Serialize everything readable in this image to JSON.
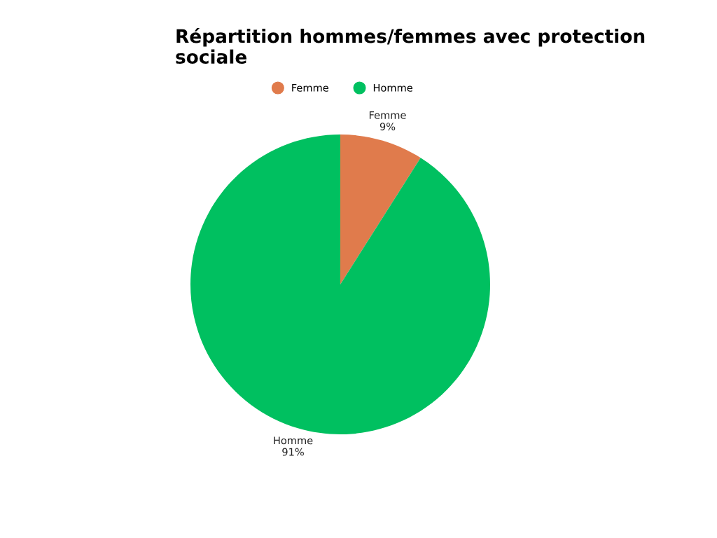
{
  "chart_data": {
    "type": "pie",
    "title": "Répartition hommes/femmes avec protection sociale",
    "categories": [
      "Femme",
      "Homme"
    ],
    "values": [
      9,
      91
    ],
    "colors": [
      "#e07b4c",
      "#00c060"
    ],
    "value_labels": [
      "9%",
      "91%"
    ],
    "legend": "top"
  }
}
